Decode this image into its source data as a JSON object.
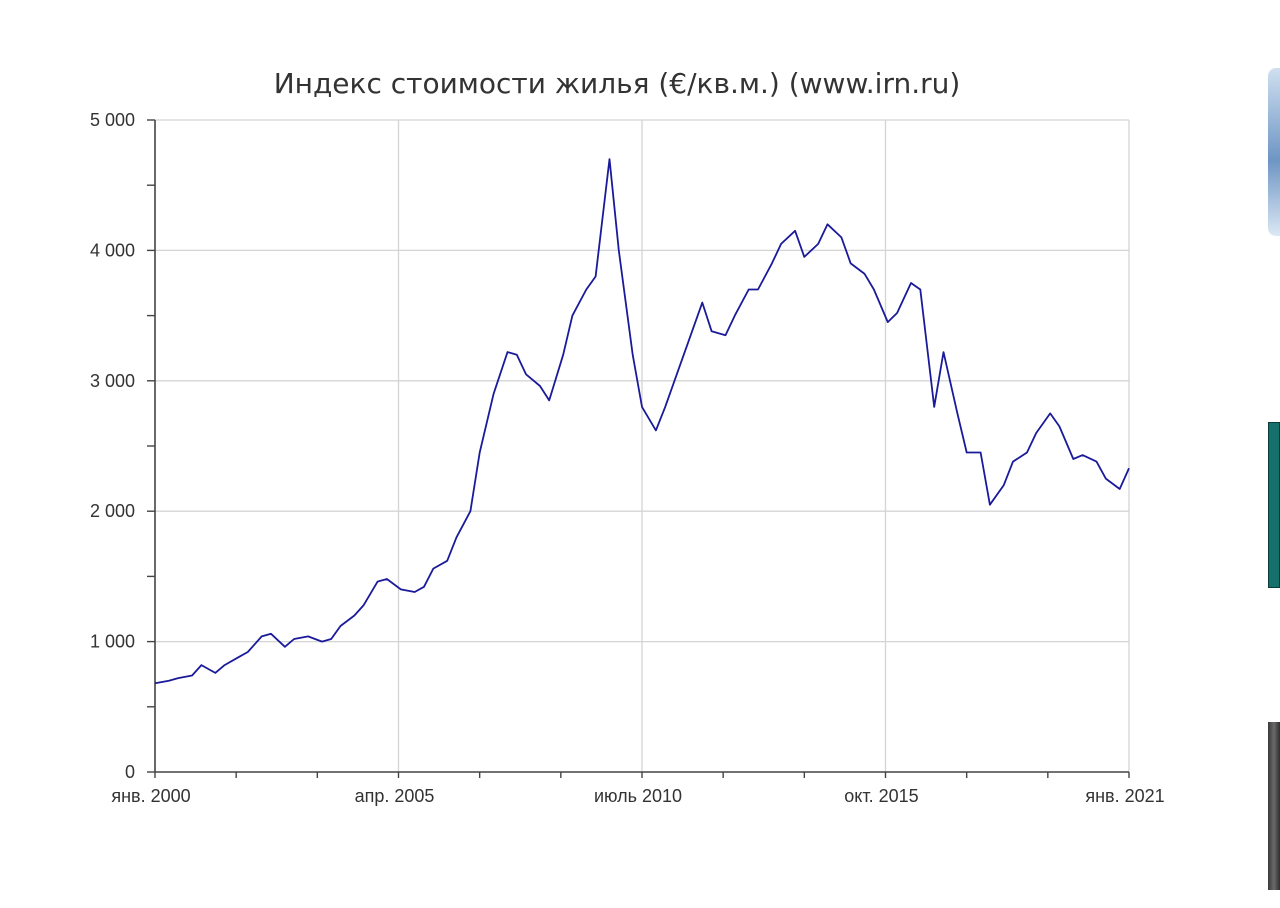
{
  "chart_data": {
    "type": "line",
    "title": "Индекс стоимости жилья (€/кв.м.) (www.irn.ru)",
    "xlabel": "",
    "ylabel": "",
    "x_tick_labels": [
      "янв. 2000",
      "апр. 2005",
      "июль 2010",
      "окт. 2015",
      "янв. 2021"
    ],
    "x_tick_values": [
      2000.0,
      2005.25,
      2010.5,
      2015.75,
      2021.0
    ],
    "xlim": [
      2000.0,
      2021.0
    ],
    "y_tick_labels": [
      "0",
      "1 000",
      "2 000",
      "3 000",
      "4 000",
      "5 000"
    ],
    "y_tick_values": [
      0,
      1000,
      2000,
      3000,
      4000,
      5000
    ],
    "ylim": [
      0,
      5000
    ],
    "grid": true,
    "line_color": "#1a1a9a",
    "series": [
      {
        "x": [
          2000.0,
          2000.3,
          2000.5,
          2000.8,
          2001.0,
          2001.3,
          2001.5,
          2001.8,
          2002.0,
          2002.3,
          2002.5,
          2002.8,
          2003.0,
          2003.3,
          2003.6,
          2003.8,
          2004.0,
          2004.3,
          2004.5,
          2004.8,
          2005.0,
          2005.3,
          2005.6,
          2005.8,
          2006.0,
          2006.3,
          2006.5,
          2006.8,
          2007.0,
          2007.3,
          2007.6,
          2007.8,
          2008.0,
          2008.3,
          2008.5,
          2008.8,
          2009.0,
          2009.3,
          2009.5,
          2009.8,
          2010.0,
          2010.3,
          2010.5,
          2010.8,
          2011.0,
          2011.3,
          2011.5,
          2011.8,
          2012.0,
          2012.3,
          2012.5,
          2012.8,
          2013.0,
          2013.3,
          2013.5,
          2013.8,
          2014.0,
          2014.3,
          2014.5,
          2014.8,
          2015.0,
          2015.3,
          2015.5,
          2015.8,
          2016.0,
          2016.3,
          2016.5,
          2016.8,
          2017.0,
          2017.3,
          2017.5,
          2017.8,
          2018.0,
          2018.3,
          2018.5,
          2018.8,
          2019.0,
          2019.3,
          2019.5,
          2019.8,
          2020.0,
          2020.3,
          2020.5,
          2020.8,
          2021.0
        ],
        "y": [
          680,
          700,
          720,
          740,
          820,
          760,
          820,
          880,
          920,
          1040,
          1060,
          960,
          1020,
          1040,
          1000,
          1020,
          1120,
          1200,
          1280,
          1460,
          1480,
          1400,
          1380,
          1420,
          1560,
          1620,
          1800,
          2000,
          2450,
          2900,
          3220,
          3200,
          3050,
          2960,
          2850,
          3200,
          3500,
          3700,
          3800,
          4700,
          4000,
          3200,
          2800,
          2620,
          2800,
          3100,
          3300,
          3600,
          3380,
          3350,
          3500,
          3700,
          3700,
          3900,
          4050,
          4150,
          3950,
          4050,
          4200,
          4100,
          3900,
          3820,
          3700,
          3450,
          3520,
          3750,
          3700,
          2800,
          3220,
          2750,
          2450,
          2450,
          2050,
          2200,
          2380,
          2450,
          2600,
          2750,
          2650,
          2400,
          2430,
          2380,
          2250,
          2170,
          2330
        ]
      }
    ]
  }
}
